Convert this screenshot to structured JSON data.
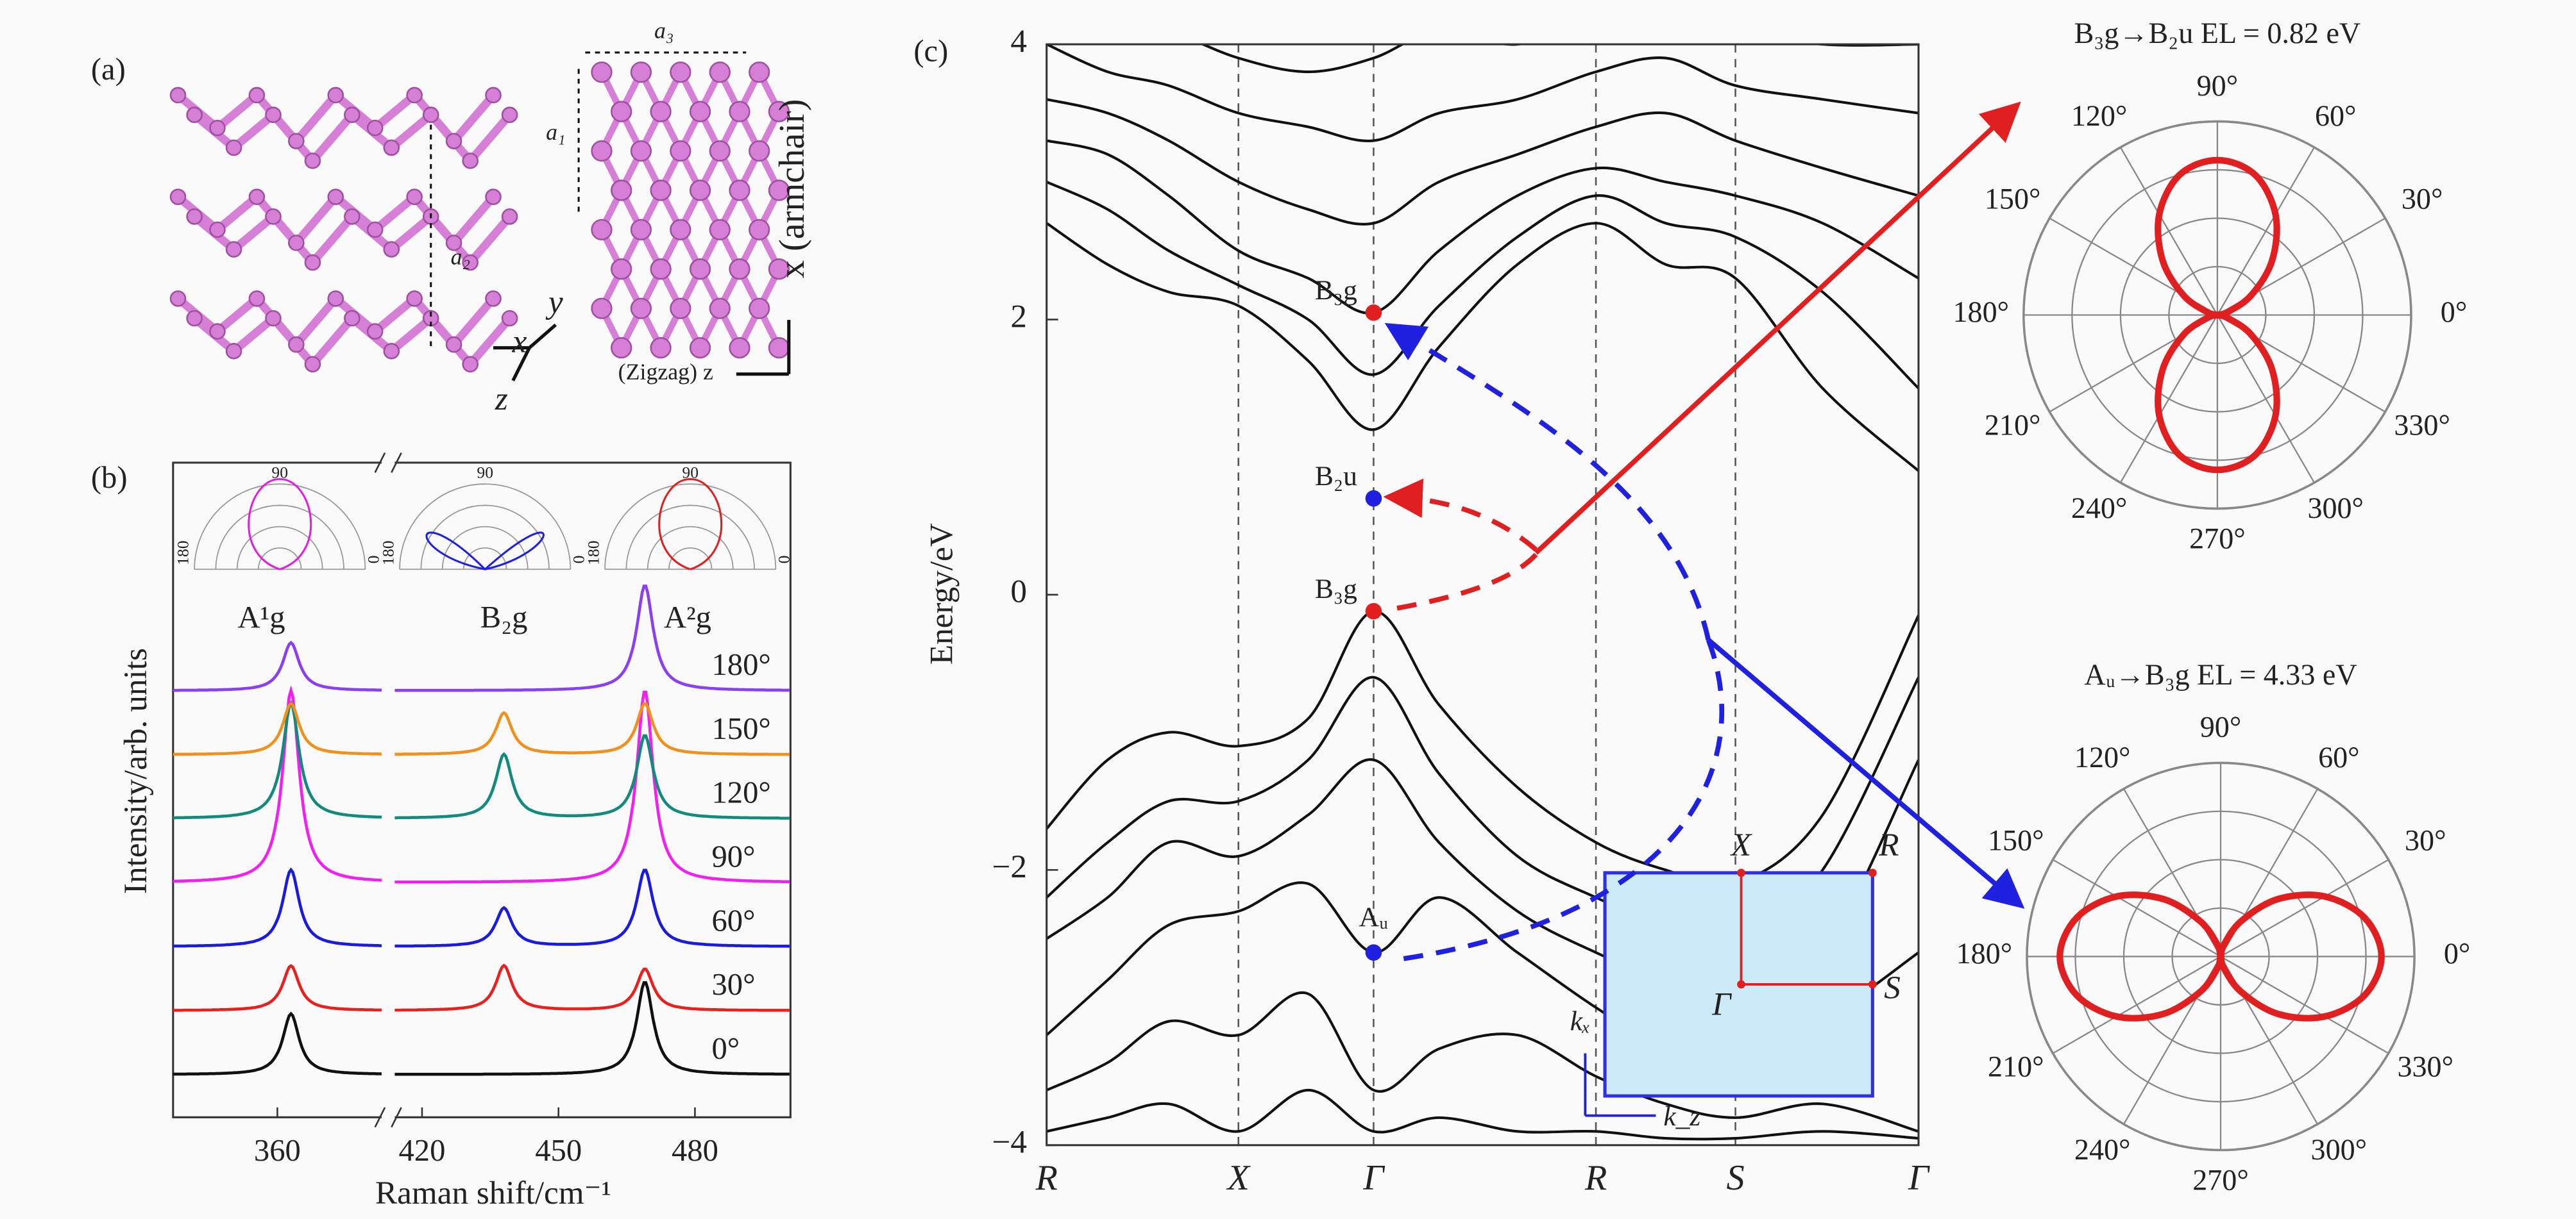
{
  "structure": {
    "label": "(a)",
    "lattice": [
      "a₃",
      "a₁",
      "a₂"
    ],
    "axes": [
      "y",
      "x",
      "z"
    ],
    "armchair": "x (armchair)",
    "zigzag": "(Zigzag) z"
  },
  "chart_data": [
    {
      "type": "spectra",
      "label": "(b)",
      "xlabel": "Raman shift/cm⁻¹",
      "ylabel": "Intensity/arb. units",
      "xlim": [
        337,
        501
      ],
      "x_break": [
        383,
        414
      ],
      "xticks": [
        360,
        420,
        450,
        480
      ],
      "peak_positions": [
        363,
        438,
        469
      ],
      "peak_labels": [
        "A¹g",
        "B₂g",
        "A²g"
      ],
      "series": [
        {
          "name": "0°",
          "color": "#111111",
          "values": [
            0.95,
            0,
            1.45
          ]
        },
        {
          "name": "30°",
          "color": "#e82020",
          "values": [
            0.7,
            0.7,
            0.65
          ]
        },
        {
          "name": "60°",
          "color": "#1a1ae0",
          "values": [
            1.2,
            0.6,
            1.2
          ]
        },
        {
          "name": "90°",
          "color": "#f020f0",
          "values": [
            3.0,
            0,
            3.0
          ]
        },
        {
          "name": "120°",
          "color": "#138a7c",
          "values": [
            1.8,
            1.0,
            1.3
          ]
        },
        {
          "name": "150°",
          "color": "#f0901e",
          "values": [
            0.8,
            0.65,
            0.8
          ]
        },
        {
          "name": "180°",
          "color": "#8a3ff0",
          "values": [
            0.75,
            0,
            1.65
          ]
        }
      ],
      "insets": [
        {
          "color": "#e020e0",
          "labels": [
            "90",
            "180",
            "0"
          ]
        },
        {
          "color": "#2020e0",
          "labels": [
            "90",
            "180",
            "0"
          ]
        },
        {
          "color": "#e02020",
          "labels": [
            "90",
            "180",
            "0"
          ]
        }
      ]
    },
    {
      "type": "bands",
      "label": "(c)",
      "ylabel": "Energy/eV",
      "color": "#111111",
      "xlim": [
        0,
        1
      ],
      "ylim": [
        -4,
        4
      ],
      "yticks": [
        {
          "value": -4,
          "label": "−4"
        },
        {
          "value": -2,
          "label": "−2"
        },
        0,
        2,
        4
      ],
      "xticks": [
        {
          "value": 0,
          "label": "R"
        },
        {
          "value": 0.22,
          "label": "X"
        },
        {
          "value": 0.375,
          "label": "Γ"
        },
        {
          "value": 0.63,
          "label": "R"
        },
        {
          "value": 0.79,
          "label": "S"
        },
        {
          "value": 1,
          "label": "Γ"
        }
      ],
      "x": [
        0,
        0.07,
        0.14,
        0.22,
        0.3,
        0.375,
        0.45,
        0.54,
        0.63,
        0.71,
        0.79,
        0.89,
        1
      ],
      "series": [
        {
          "values": [
            -1.7,
            -1.2,
            -1.0,
            -1.1,
            -0.9,
            -0.12,
            -0.8,
            -1.4,
            -1.8,
            -2.0,
            -2.1,
            -1.6,
            -0.15
          ]
        },
        {
          "values": [
            -2.2,
            -1.8,
            -1.5,
            -1.5,
            -1.2,
            -0.6,
            -1.3,
            -1.9,
            -2.2,
            -2.4,
            -2.5,
            -2.0,
            -0.6
          ]
        },
        {
          "values": [
            -2.5,
            -2.2,
            -1.8,
            -1.9,
            -1.6,
            -1.2,
            -1.8,
            -2.3,
            -2.6,
            -2.8,
            -2.9,
            -2.6,
            -1.2
          ]
        },
        {
          "values": [
            -3.2,
            -2.8,
            -2.4,
            -2.3,
            -2.1,
            -2.6,
            -2.2,
            -2.6,
            -3.0,
            -3.3,
            -3.4,
            -3.1,
            -2.6
          ]
        },
        {
          "values": [
            -3.6,
            -3.4,
            -3.1,
            -3.2,
            -2.9,
            -3.6,
            -3.3,
            -3.2,
            -3.5,
            -3.7,
            -3.8,
            -3.7,
            -3.9
          ]
        },
        {
          "values": [
            -3.9,
            -3.8,
            -3.7,
            -3.9,
            -3.6,
            -3.9,
            -3.8,
            -3.9,
            -3.9,
            -3.95,
            -3.95,
            -3.9,
            -3.95
          ]
        },
        {
          "values": [
            2.7,
            2.4,
            2.2,
            2.1,
            1.7,
            1.2,
            1.8,
            2.4,
            2.7,
            2.4,
            2.3,
            1.5,
            0.9
          ]
        },
        {
          "values": [
            3.0,
            2.8,
            2.5,
            2.25,
            2.0,
            1.6,
            2.1,
            2.6,
            2.9,
            2.7,
            2.6,
            2.2,
            1.5
          ]
        },
        {
          "values": [
            3.3,
            3.2,
            2.9,
            2.5,
            2.3,
            2.05,
            2.5,
            2.9,
            3.1,
            3.0,
            2.9,
            2.7,
            2.3
          ]
        },
        {
          "values": [
            3.6,
            3.5,
            3.3,
            3.0,
            2.8,
            2.7,
            3.0,
            3.2,
            3.4,
            3.5,
            3.3,
            3.1,
            2.9
          ]
        },
        {
          "values": [
            4.0,
            3.8,
            3.7,
            3.5,
            3.4,
            3.3,
            3.5,
            3.6,
            3.8,
            3.9,
            3.7,
            3.6,
            3.5
          ]
        },
        {
          "values": [
            4.3,
            4.2,
            4.1,
            3.9,
            3.8,
            3.9,
            4.1,
            4.0,
            4.2,
            4.3,
            4.1,
            4.0,
            4.0
          ]
        }
      ],
      "states": [
        {
          "name": "B₃g",
          "x": 0.375,
          "y": 2.05,
          "color": "#e02020"
        },
        {
          "name": "B₂u",
          "x": 0.375,
          "y": 0.7,
          "color": "#2020e0"
        },
        {
          "name": "B₃g",
          "x": 0.375,
          "y": -0.12,
          "color": "#e02020"
        },
        {
          "name": "Aᵤ",
          "x": 0.375,
          "y": -2.6,
          "color": "#2020e0"
        }
      ],
      "brillouin_zone": {
        "labels": [
          "X",
          "R",
          "Γ",
          "S",
          "kₓ",
          "k_z"
        ]
      }
    },
    {
      "type": "polar",
      "title": "B₃g→B₂u EL = 0.82 eV",
      "color": "#e02020",
      "rlim": [
        0,
        1
      ],
      "rticks": [
        0.25,
        0.5,
        0.75,
        1
      ],
      "theta": [
        0,
        15,
        30,
        45,
        60,
        75,
        90,
        105,
        120,
        135,
        150,
        165,
        180,
        195,
        210,
        225,
        240,
        255,
        270,
        285,
        300,
        315,
        330,
        345
      ],
      "values": [
        0,
        0.05,
        0.2,
        0.4,
        0.6,
        0.75,
        0.8,
        0.75,
        0.6,
        0.4,
        0.2,
        0.05,
        0,
        0.05,
        0.2,
        0.4,
        0.6,
        0.75,
        0.8,
        0.75,
        0.6,
        0.4,
        0.2,
        0.05
      ],
      "theta_ticks": [
        {
          "value": 0,
          "label": "0°"
        },
        {
          "value": 30,
          "label": "30°"
        },
        {
          "value": 60,
          "label": "60°"
        },
        {
          "value": 90,
          "label": "90°"
        },
        {
          "value": 120,
          "label": "120°"
        },
        {
          "value": 150,
          "label": "150°"
        },
        {
          "value": 180,
          "label": "180°"
        },
        {
          "value": 210,
          "label": "210°"
        },
        {
          "value": 240,
          "label": "240°"
        },
        {
          "value": 270,
          "label": "270°"
        },
        {
          "value": 300,
          "label": "300°"
        },
        {
          "value": 330,
          "label": "330°"
        }
      ]
    },
    {
      "type": "polar",
      "title": "Aᵤ→B₃g EL = 4.33 eV",
      "color": "#e02020",
      "rlim": [
        0,
        1
      ],
      "rticks": [
        0.25,
        0.5,
        0.75,
        1
      ],
      "theta": [
        0,
        15,
        30,
        45,
        60,
        75,
        90,
        105,
        120,
        135,
        150,
        165,
        180,
        195,
        210,
        225,
        240,
        255,
        270,
        285,
        300,
        315,
        330,
        345
      ],
      "values": [
        0.83,
        0.77,
        0.62,
        0.42,
        0.21,
        0.06,
        0,
        0.06,
        0.21,
        0.42,
        0.62,
        0.77,
        0.83,
        0.77,
        0.62,
        0.42,
        0.21,
        0.06,
        0,
        0.06,
        0.21,
        0.42,
        0.62,
        0.77
      ],
      "theta_ticks": [
        {
          "value": 0,
          "label": "0°"
        },
        {
          "value": 30,
          "label": "30°"
        },
        {
          "value": 60,
          "label": "60°"
        },
        {
          "value": 90,
          "label": "90°"
        },
        {
          "value": 120,
          "label": "120°"
        },
        {
          "value": 150,
          "label": "150°"
        },
        {
          "value": 180,
          "label": "180°"
        },
        {
          "value": 210,
          "label": "210°"
        },
        {
          "value": 240,
          "label": "240°"
        },
        {
          "value": 270,
          "label": "270°"
        },
        {
          "value": 300,
          "label": "300°"
        },
        {
          "value": 330,
          "label": "330°"
        }
      ]
    }
  ]
}
